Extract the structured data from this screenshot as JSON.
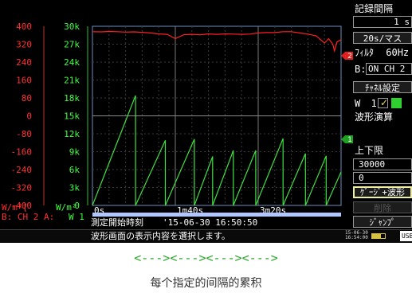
{
  "left_axis_1": {
    "unit": "W/m²[",
    "ticks": [
      "400",
      "320",
      "240",
      "160",
      "80",
      "0",
      "-80",
      "-160",
      "-240",
      "-320",
      "-400"
    ],
    "color": "#ff3030"
  },
  "left_axis_2": {
    "unit": "W/m²",
    "ticks": [
      "30k",
      "27k",
      "24k",
      "21k",
      "18k",
      "15k",
      "12k",
      "9k",
      "6k",
      "3k",
      "0"
    ],
    "color": "#40ff40"
  },
  "x_axis": {
    "ticks": [
      "0s",
      "1m40s",
      "3m20s"
    ]
  },
  "markers": {
    "ch2": "2",
    "ch1": "1"
  },
  "channels_line": {
    "b_ch2": "B: CH 2 A:",
    "w1": "W 1"
  },
  "status": {
    "start_time_label": "測定開始時刻",
    "start_time_value": "'15-06-30 16:50:50",
    "help_text": "波形画面の表示内容を選択します。",
    "clock": "15-06-30\n16:54:00",
    "battery_icon": "battery-icon",
    "usb_label": "USB"
  },
  "sidebar": {
    "record_interval_label": "記録間隔",
    "record_interval_value": "1 s",
    "time_div": "20s/マス",
    "filter_label": "ﾌｨﾙﾀ",
    "filter_value": "60Hz",
    "b_label": "B:",
    "b_value": "ON CH 2",
    "channel_setting": "ﾁｬﾈﾙ設定",
    "w_label": "W",
    "w_value": "1",
    "waveform_calc": "波形演算",
    "limits_label": "上下限",
    "upper_value": "30000",
    "lower_value": "0",
    "gauge_waveform": "ｹﾞｰｼﾞ+波形",
    "disabled_btn": "削除",
    "jump": "ｼﾞｬﾝﾌﾟ"
  },
  "caption": {
    "arrows": "<---><---><---><--->",
    "text": "每个指定的间隔的累积"
  },
  "chart_data": {
    "type": "line",
    "x_range_s": [
      0,
      300
    ],
    "x_ticks": [
      "0s",
      "1m40s",
      "3m20s"
    ],
    "series": [
      {
        "axis": "left_axis_1",
        "color": "#ff2020",
        "x": [
          0,
          10,
          20,
          30,
          40,
          50,
          60,
          70,
          80,
          90,
          100,
          110,
          120,
          130,
          140,
          150,
          160,
          170,
          180,
          190,
          200,
          210,
          220,
          230,
          240,
          250,
          260,
          270,
          280,
          285,
          290,
          292,
          295,
          300
        ],
        "y": [
          376,
          375,
          377,
          376,
          374,
          375,
          373,
          370,
          366,
          364,
          345,
          362,
          364,
          362,
          366,
          364,
          366,
          365,
          364,
          365,
          370,
          372,
          372,
          376,
          376,
          370,
          365,
          357,
          325,
          345,
          320,
          290,
          330,
          340
        ]
      },
      {
        "axis": "left_axis_2",
        "color": "#40e040",
        "x": [
          0,
          52,
          52,
          88,
          88,
          123,
          123,
          145,
          145,
          170,
          170,
          197,
          197,
          230,
          230,
          257,
          257,
          282,
          282,
          300
        ],
        "y": [
          0,
          18400,
          0,
          10900,
          0,
          11100,
          0,
          8200,
          0,
          9200,
          0,
          9200,
          0,
          11200,
          0,
          8700,
          0,
          8300,
          0,
          5600
        ]
      }
    ]
  }
}
